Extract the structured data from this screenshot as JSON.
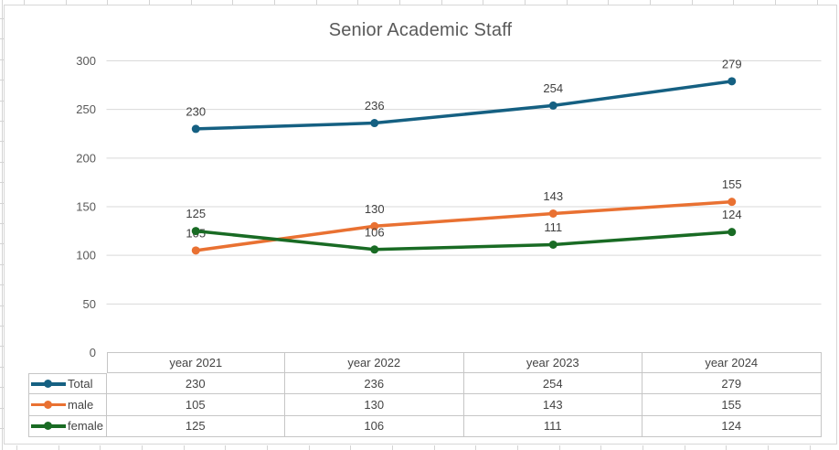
{
  "chart_data": {
    "type": "line",
    "title": "Senior Academic Staff",
    "categories": [
      "year 2021",
      "year 2022",
      "year 2023",
      "year 2024"
    ],
    "series": [
      {
        "name": "Total",
        "color": "#156082",
        "values": [
          230,
          236,
          254,
          279
        ]
      },
      {
        "name": "male",
        "color": "#E97132",
        "values": [
          105,
          130,
          143,
          155
        ]
      },
      {
        "name": "female",
        "color": "#196B24",
        "values": [
          125,
          106,
          111,
          124
        ]
      }
    ],
    "xlabel": "",
    "ylabel": "",
    "ylim": [
      0,
      300
    ],
    "y_ticks": [
      0,
      50,
      100,
      150,
      200,
      250,
      300
    ],
    "grid": true,
    "data_labels": true,
    "legend_position": "data-table-left",
    "data_table_shown": true,
    "marker": "circle"
  },
  "styles": {
    "title_color": "#595959",
    "axis_label_color": "#595959",
    "data_label_color": "#404040",
    "gridline_color": "#d9d9d9",
    "chart_border_color": "#d7d7d7",
    "table_border_color": "#c6c6c6",
    "table_text_color": "#444444",
    "spreadsheet_gridline_color": "#d4d4d4",
    "chart_background": "#ffffff"
  }
}
